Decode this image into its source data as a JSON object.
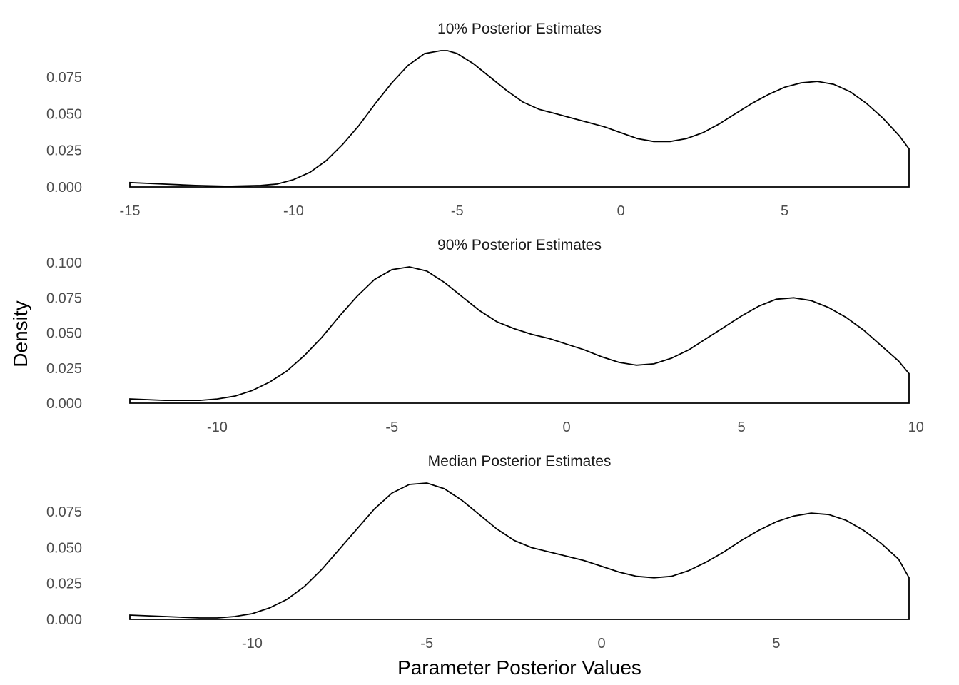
{
  "chart_data": [
    {
      "type": "area",
      "title": "10% Posterior Estimates",
      "xlim": [
        -15.0,
        8.8
      ],
      "ylim": [
        0.0,
        0.093
      ],
      "xticks": [
        -15,
        -10,
        -5,
        0,
        5
      ],
      "xtick_labels": [
        "-15",
        "-10",
        "-5",
        "0",
        "5"
      ],
      "yticks": [
        0.0,
        0.025,
        0.05,
        0.075
      ],
      "ytick_labels": [
        "0.000",
        "0.025",
        "0.050",
        "0.075"
      ],
      "grid": false,
      "x": [
        -15,
        -14,
        -13,
        -12,
        -11,
        -10.5,
        -10,
        -9.5,
        -9,
        -8.5,
        -8,
        -7.5,
        -7,
        -6.5,
        -6,
        -5.5,
        -5.3,
        -5,
        -4.5,
        -4,
        -3.5,
        -3,
        -2.5,
        -2,
        -1.5,
        -1,
        -0.5,
        0,
        0.5,
        1,
        1.5,
        2,
        2.5,
        3,
        3.5,
        4,
        4.5,
        5,
        5.5,
        6,
        6.5,
        7,
        7.5,
        8,
        8.5,
        8.8
      ],
      "y": [
        0.003,
        0.002,
        0.001,
        0.0005,
        0.001,
        0.002,
        0.005,
        0.01,
        0.018,
        0.029,
        0.042,
        0.057,
        0.071,
        0.083,
        0.091,
        0.093,
        0.093,
        0.091,
        0.084,
        0.075,
        0.066,
        0.058,
        0.053,
        0.05,
        0.047,
        0.044,
        0.041,
        0.037,
        0.033,
        0.031,
        0.031,
        0.033,
        0.037,
        0.043,
        0.05,
        0.057,
        0.063,
        0.068,
        0.071,
        0.072,
        0.07,
        0.065,
        0.057,
        0.047,
        0.035,
        0.026
      ]
    },
    {
      "type": "area",
      "title": "90% Posterior Estimates",
      "xlim": [
        -12.5,
        9.8
      ],
      "ylim": [
        0.0,
        0.097
      ],
      "xticks": [
        -10,
        -5,
        0,
        5,
        10
      ],
      "xtick_labels": [
        "-10",
        "-5",
        "0",
        "5",
        "10"
      ],
      "yticks": [
        0.0,
        0.025,
        0.05,
        0.075,
        0.1
      ],
      "ytick_labels": [
        "0.000",
        "0.025",
        "0.050",
        "0.075",
        "0.100"
      ],
      "grid": false,
      "x": [
        -12.5,
        -11.5,
        -10.5,
        -10,
        -9.5,
        -9,
        -8.5,
        -8,
        -7.5,
        -7,
        -6.5,
        -6,
        -5.5,
        -5,
        -4.5,
        -4,
        -3.5,
        -3,
        -2.5,
        -2,
        -1.5,
        -1,
        -0.5,
        0,
        0.5,
        1,
        1.5,
        2,
        2.5,
        3,
        3.5,
        4,
        4.5,
        5,
        5.5,
        6,
        6.5,
        7,
        7.5,
        8,
        8.5,
        9,
        9.5,
        9.8
      ],
      "y": [
        0.003,
        0.002,
        0.002,
        0.003,
        0.005,
        0.009,
        0.015,
        0.023,
        0.034,
        0.047,
        0.062,
        0.076,
        0.088,
        0.095,
        0.097,
        0.094,
        0.086,
        0.076,
        0.066,
        0.058,
        0.053,
        0.049,
        0.046,
        0.042,
        0.038,
        0.033,
        0.029,
        0.027,
        0.028,
        0.032,
        0.038,
        0.046,
        0.054,
        0.062,
        0.069,
        0.074,
        0.075,
        0.073,
        0.068,
        0.061,
        0.052,
        0.041,
        0.03,
        0.021
      ]
    },
    {
      "type": "area",
      "title": "Median Posterior Estimates",
      "xlim": [
        -13.5,
        8.8
      ],
      "ylim": [
        0.0,
        0.095
      ],
      "xticks": [
        -10,
        -5,
        0,
        5
      ],
      "xtick_labels": [
        "-10",
        "-5",
        "0",
        "5"
      ],
      "yticks": [
        0.0,
        0.025,
        0.05,
        0.075
      ],
      "ytick_labels": [
        "0.000",
        "0.025",
        "0.050",
        "0.075"
      ],
      "grid": false,
      "x": [
        -13.5,
        -12.5,
        -11.5,
        -11,
        -10.5,
        -10,
        -9.5,
        -9,
        -8.5,
        -8,
        -7.5,
        -7,
        -6.5,
        -6,
        -5.5,
        -5,
        -4.5,
        -4,
        -3.5,
        -3,
        -2.5,
        -2,
        -1.5,
        -1,
        -0.5,
        0,
        0.5,
        1,
        1.5,
        2,
        2.5,
        3,
        3.5,
        4,
        4.5,
        5,
        5.5,
        6,
        6.5,
        7,
        7.5,
        8,
        8.5,
        8.8
      ],
      "y": [
        0.003,
        0.002,
        0.001,
        0.001,
        0.002,
        0.004,
        0.008,
        0.014,
        0.023,
        0.035,
        0.049,
        0.063,
        0.077,
        0.088,
        0.094,
        0.095,
        0.091,
        0.083,
        0.073,
        0.063,
        0.055,
        0.05,
        0.047,
        0.044,
        0.041,
        0.037,
        0.033,
        0.03,
        0.029,
        0.03,
        0.034,
        0.04,
        0.047,
        0.055,
        0.062,
        0.068,
        0.072,
        0.074,
        0.073,
        0.069,
        0.062,
        0.053,
        0.042,
        0.029
      ]
    }
  ],
  "axes": {
    "xlabel": "Parameter Posterior Values",
    "ylabel": "Density"
  }
}
